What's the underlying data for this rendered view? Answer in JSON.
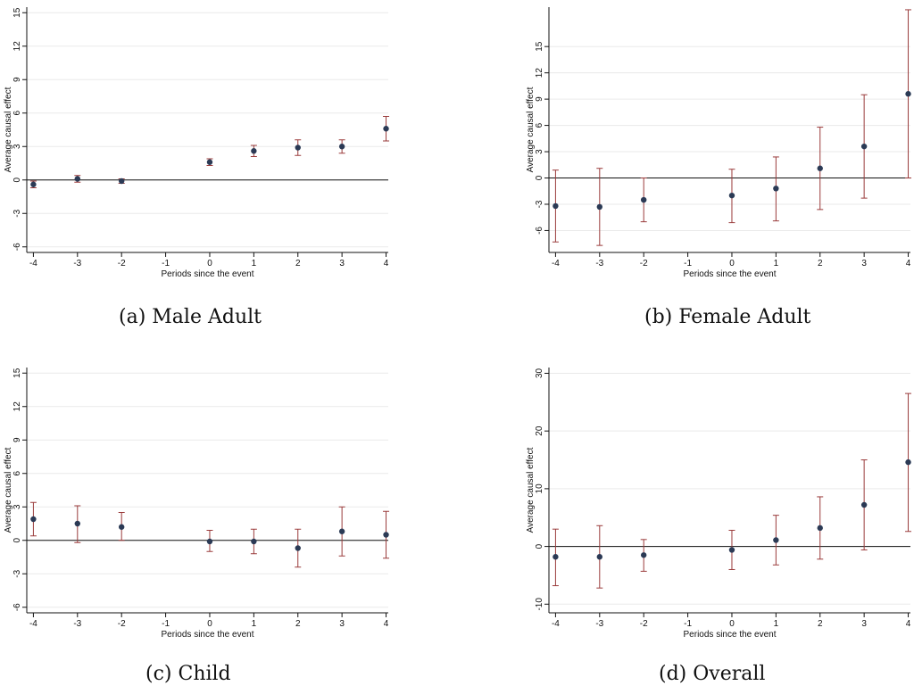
{
  "chart_data": [
    {
      "type": "scatter",
      "caption": "(a) Male Adult",
      "xlabel": "Periods since the event",
      "ylabel": "Average causal effect",
      "x_ticks": [
        -4,
        -3,
        -2,
        -1,
        0,
        1,
        2,
        3,
        4
      ],
      "y_ticks": [
        -6,
        -3,
        0,
        3,
        6,
        9,
        12,
        15
      ],
      "ylim": [
        -6.5,
        15.5
      ],
      "xlim": [
        -4.15,
        4.05
      ],
      "grid": true,
      "zero_line": true,
      "points": [
        {
          "x": -4,
          "y": -0.4,
          "lo": -0.7,
          "hi": -0.1
        },
        {
          "x": -3,
          "y": 0.1,
          "lo": -0.2,
          "hi": 0.4
        },
        {
          "x": -2,
          "y": -0.1,
          "lo": -0.3,
          "hi": 0.1
        },
        {
          "x": 0,
          "y": 1.6,
          "lo": 1.3,
          "hi": 1.9
        },
        {
          "x": 1,
          "y": 2.6,
          "lo": 2.1,
          "hi": 3.1
        },
        {
          "x": 2,
          "y": 2.9,
          "lo": 2.2,
          "hi": 3.6
        },
        {
          "x": 3,
          "y": 3.0,
          "lo": 2.4,
          "hi": 3.6
        },
        {
          "x": 4,
          "y": 4.6,
          "lo": 3.5,
          "hi": 5.7
        }
      ]
    },
    {
      "type": "scatter",
      "caption": "(b) Female Adult",
      "xlabel": "Periods since the event",
      "ylabel": "Average causal effect",
      "x_ticks": [
        -4,
        -3,
        -2,
        -1,
        0,
        1,
        2,
        3,
        4
      ],
      "y_ticks": [
        -6,
        -3,
        0,
        3,
        6,
        9,
        12,
        15
      ],
      "ylim": [
        -8.5,
        19.5
      ],
      "xlim": [
        -4.15,
        4.05
      ],
      "grid": true,
      "zero_line": true,
      "points": [
        {
          "x": -4,
          "y": -3.2,
          "lo": -7.3,
          "hi": 0.9
        },
        {
          "x": -3,
          "y": -3.3,
          "lo": -7.7,
          "hi": 1.1
        },
        {
          "x": -2,
          "y": -2.5,
          "lo": -5.0,
          "hi": 0.0
        },
        {
          "x": 0,
          "y": -2.0,
          "lo": -5.1,
          "hi": 1.0
        },
        {
          "x": 1,
          "y": -1.2,
          "lo": -4.9,
          "hi": 2.4
        },
        {
          "x": 2,
          "y": 1.1,
          "lo": -3.6,
          "hi": 5.8
        },
        {
          "x": 3,
          "y": 3.6,
          "lo": -2.3,
          "hi": 9.5
        },
        {
          "x": 4,
          "y": 9.6,
          "lo": 0.0,
          "hi": 19.2
        }
      ]
    },
    {
      "type": "scatter",
      "caption": "(c) Child",
      "xlabel": "Periods since the event",
      "ylabel": "Average causal effect",
      "x_ticks": [
        -4,
        -3,
        -2,
        -1,
        0,
        1,
        2,
        3,
        4
      ],
      "y_ticks": [
        -6,
        -3,
        0,
        3,
        6,
        9,
        12,
        15
      ],
      "ylim": [
        -6.5,
        15.5
      ],
      "xlim": [
        -4.15,
        4.05
      ],
      "grid": true,
      "zero_line": true,
      "points": [
        {
          "x": -4,
          "y": 1.9,
          "lo": 0.4,
          "hi": 3.4
        },
        {
          "x": -3,
          "y": 1.5,
          "lo": -0.2,
          "hi": 3.1
        },
        {
          "x": -2,
          "y": 1.2,
          "lo": 0.0,
          "hi": 2.5
        },
        {
          "x": 0,
          "y": -0.1,
          "lo": -1.0,
          "hi": 0.9
        },
        {
          "x": 1,
          "y": -0.1,
          "lo": -1.2,
          "hi": 1.0
        },
        {
          "x": 2,
          "y": -0.7,
          "lo": -2.4,
          "hi": 1.0
        },
        {
          "x": 3,
          "y": 0.8,
          "lo": -1.4,
          "hi": 3.0
        },
        {
          "x": 4,
          "y": 0.5,
          "lo": -1.6,
          "hi": 2.6
        }
      ]
    },
    {
      "type": "scatter",
      "caption": "(d) Overall",
      "xlabel": "Periods since the event",
      "ylabel": "Average causal effect",
      "x_ticks": [
        -4,
        -3,
        -2,
        -1,
        0,
        1,
        2,
        3,
        4
      ],
      "y_ticks": [
        -10,
        0,
        10,
        20,
        30
      ],
      "ylim": [
        -11.5,
        31
      ],
      "xlim": [
        -4.15,
        4.05
      ],
      "grid": true,
      "zero_line": true,
      "points": [
        {
          "x": -4,
          "y": -1.8,
          "lo": -6.8,
          "hi": 3.0
        },
        {
          "x": -3,
          "y": -1.8,
          "lo": -7.2,
          "hi": 3.6
        },
        {
          "x": -2,
          "y": -1.5,
          "lo": -4.3,
          "hi": 1.2
        },
        {
          "x": 0,
          "y": -0.6,
          "lo": -4.0,
          "hi": 2.8
        },
        {
          "x": 1,
          "y": 1.1,
          "lo": -3.2,
          "hi": 5.4
        },
        {
          "x": 2,
          "y": 3.2,
          "lo": -2.2,
          "hi": 8.6
        },
        {
          "x": 3,
          "y": 7.2,
          "lo": -0.6,
          "hi": 15.0
        },
        {
          "x": 4,
          "y": 14.6,
          "lo": 2.6,
          "hi": 26.5
        }
      ]
    }
  ],
  "colors": {
    "marker": "#2b3a55",
    "error_bar": "#9a3b3b",
    "grid": "#eaeaea",
    "axis": "#111111",
    "zero_line": "#111111"
  }
}
